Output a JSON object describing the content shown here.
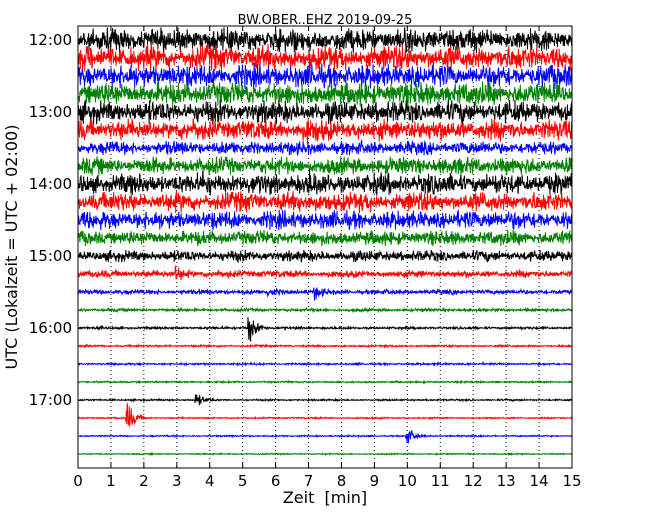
{
  "chart_data": {
    "type": "line",
    "title": "BW.OBER..EHZ 2019-09-25",
    "xlabel": "Zeit  [min]",
    "ylabel": "UTC (Lokalzeit = UTC + 02:00)",
    "xlim": [
      0,
      15
    ],
    "x_ticks": [
      0,
      1,
      2,
      3,
      4,
      5,
      6,
      7,
      8,
      9,
      10,
      11,
      12,
      13,
      14,
      15
    ],
    "x_tick_labels": [
      "0",
      "1",
      "2",
      "3",
      "4",
      "5",
      "6",
      "7",
      "8",
      "9",
      "10",
      "11",
      "12",
      "13",
      "14",
      "15"
    ],
    "y_tick_labels": [
      "12:00",
      "13:00",
      "14:00",
      "15:00",
      "16:00",
      "17:00"
    ],
    "grid": {
      "vertical_dotted": true
    },
    "trace_interval_min": 15,
    "first_trace_utc": "12:00",
    "color_cycle": [
      "#000000",
      "#ff0000",
      "#0000ff",
      "#008000"
    ],
    "traces": [
      {
        "start_utc": "12:00",
        "amplitude": 0.95
      },
      {
        "start_utc": "12:15",
        "amplitude": 1.0
      },
      {
        "start_utc": "12:30",
        "amplitude": 0.95
      },
      {
        "start_utc": "12:45",
        "amplitude": 0.95
      },
      {
        "start_utc": "13:00",
        "amplitude": 0.9
      },
      {
        "start_utc": "13:15",
        "amplitude": 0.85
      },
      {
        "start_utc": "13:30",
        "amplitude": 0.55
      },
      {
        "start_utc": "13:45",
        "amplitude": 0.7
      },
      {
        "start_utc": "14:00",
        "amplitude": 0.85
      },
      {
        "start_utc": "14:15",
        "amplitude": 0.8
      },
      {
        "start_utc": "14:30",
        "amplitude": 0.75
      },
      {
        "start_utc": "14:45",
        "amplitude": 0.6
      },
      {
        "start_utc": "15:00",
        "amplitude": 0.45
      },
      {
        "start_utc": "15:15",
        "amplitude": 0.3
      },
      {
        "start_utc": "15:30",
        "amplitude": 0.2
      },
      {
        "start_utc": "15:45",
        "amplitude": 0.12
      },
      {
        "start_utc": "16:00",
        "amplitude": 0.1
      },
      {
        "start_utc": "16:15",
        "amplitude": 0.08
      },
      {
        "start_utc": "16:30",
        "amplitude": 0.08
      },
      {
        "start_utc": "16:45",
        "amplitude": 0.07
      },
      {
        "start_utc": "17:00",
        "amplitude": 0.07
      },
      {
        "start_utc": "17:15",
        "amplitude": 0.06
      },
      {
        "start_utc": "17:30",
        "amplitude": 0.06
      },
      {
        "start_utc": "17:45",
        "amplitude": 0.05
      }
    ],
    "events": [
      {
        "trace_utc": "13:15",
        "minute": 7.0,
        "strength": 1.0
      },
      {
        "trace_utc": "14:00",
        "minute": 3.8,
        "strength": 0.6
      },
      {
        "trace_utc": "14:00",
        "minute": 7.0,
        "strength": 0.8
      },
      {
        "trace_utc": "14:15",
        "minute": 7.5,
        "strength": 0.8
      },
      {
        "trace_utc": "14:30",
        "minute": 12.5,
        "strength": 0.8
      },
      {
        "trace_utc": "15:15",
        "minute": 3.0,
        "strength": 1.2
      },
      {
        "trace_utc": "15:30",
        "minute": 7.2,
        "strength": 1.0
      },
      {
        "trace_utc": "15:30",
        "minute": 5.8,
        "strength": 0.6
      },
      {
        "trace_utc": "16:00",
        "minute": 5.2,
        "strength": 2.5
      },
      {
        "trace_utc": "17:00",
        "minute": 3.6,
        "strength": 1.2
      },
      {
        "trace_utc": "17:15",
        "minute": 1.5,
        "strength": 3.0
      },
      {
        "trace_utc": "17:30",
        "minute": 10.0,
        "strength": 1.5
      }
    ]
  }
}
